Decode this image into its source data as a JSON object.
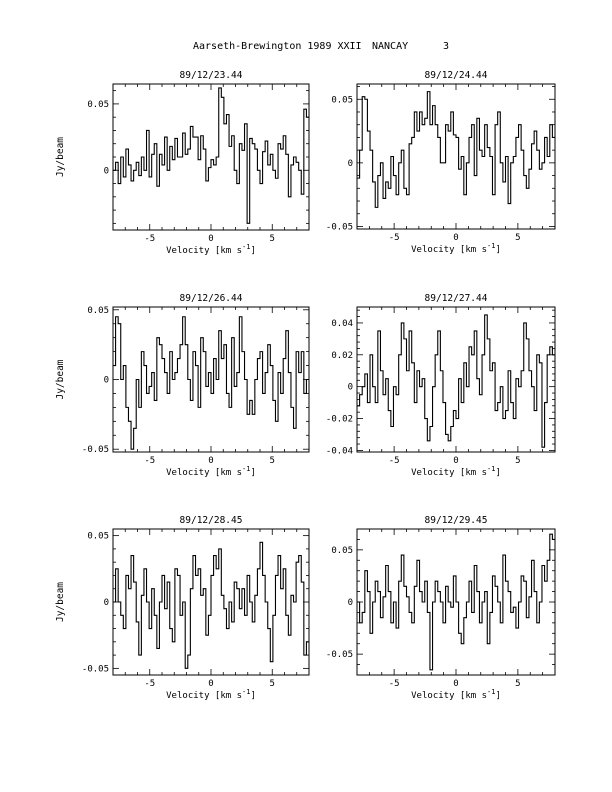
{
  "header": {
    "title": "Aarseth-Brewington 1989 XXII",
    "site": "NANCAY",
    "page": "3"
  },
  "chart_data": [
    {
      "type": "line",
      "title": "89/12/23.44",
      "xlabel": "Velocity [km s",
      "xlabel_sup": "-1",
      "xlabel_end": "]",
      "ylabel": "Jy/beam",
      "xlim": [
        -8,
        8
      ],
      "ylim": [
        -0.045,
        0.065
      ],
      "xticks": [
        -5,
        0,
        5
      ],
      "xtick_labels": [
        "-5",
        "0",
        "5"
      ],
      "yticks": [
        0.05,
        0
      ],
      "ytick_labels": [
        "0.05",
        "0"
      ],
      "series": [
        {
          "values": [
            0.0,
            0.006,
            -0.01,
            0.01,
            -0.005,
            0.016,
            0.004,
            -0.008,
            0.0,
            0.006,
            -0.004,
            0.01,
            0.0,
            0.03,
            -0.005,
            0.012,
            0.02,
            -0.012,
            0.012,
            0.004,
            0.025,
            0.0,
            0.018,
            0.008,
            0.024,
            0.01,
            0.01,
            0.028,
            0.012,
            0.016,
            0.033,
            0.025,
            0.025,
            0.008,
            0.026,
            0.016,
            -0.008,
            0.002,
            0.008,
            0.004,
            0.01,
            0.062,
            0.055,
            0.035,
            0.042,
            0.018,
            0.026,
            0.0,
            -0.01,
            0.02,
            0.015,
            0.035,
            -0.04,
            0.024,
            0.02,
            0.016,
            0.0,
            -0.01,
            0.014,
            0.022,
            0.004,
            0.012,
            0.0,
            -0.006,
            0.02,
            0.016,
            0.026,
            0.012,
            -0.02,
            0.004,
            0.01,
            0.006,
            0.0,
            -0.018,
            0.046,
            0.04
          ]
        }
      ]
    },
    {
      "type": "line",
      "title": "89/12/24.44",
      "xlabel": "Velocity [km s",
      "xlabel_sup": "-1",
      "xlabel_end": "]",
      "ylabel": "",
      "xlim": [
        -8,
        8
      ],
      "ylim": [
        -0.052,
        0.062
      ],
      "xticks": [
        -5,
        0,
        5
      ],
      "xtick_labels": [
        "-5",
        "0",
        "5"
      ],
      "yticks": [
        0.05,
        0,
        -0.05
      ],
      "ytick_labels": [
        "0.05",
        "0",
        "-0.05"
      ],
      "series": [
        {
          "values": [
            -0.012,
            0.01,
            0.052,
            0.05,
            0.025,
            0.01,
            -0.015,
            -0.035,
            -0.01,
            0.0,
            -0.028,
            -0.015,
            -0.02,
            0.005,
            -0.01,
            -0.025,
            0.0,
            0.01,
            -0.02,
            -0.025,
            0.015,
            0.02,
            0.04,
            0.025,
            0.04,
            0.03,
            0.035,
            0.056,
            0.03,
            0.045,
            0.03,
            0.02,
            0.0,
            0.0,
            0.03,
            0.025,
            0.04,
            0.022,
            0.02,
            -0.005,
            0.005,
            -0.025,
            0.0,
            0.02,
            0.03,
            -0.01,
            0.035,
            0.01,
            0.005,
            0.03,
            0.012,
            0.005,
            -0.025,
            0.03,
            0.04,
            0.0,
            -0.015,
            0.005,
            -0.032,
            0.0,
            0.005,
            0.02,
            0.03,
            0.01,
            -0.01,
            -0.02,
            -0.005,
            0.015,
            0.025,
            0.01,
            -0.005,
            0.0,
            0.02,
            0.005,
            0.03,
            0.02
          ]
        }
      ]
    },
    {
      "type": "line",
      "title": "89/12/26.44",
      "xlabel": "Velocity [km s",
      "xlabel_sup": "-1",
      "xlabel_end": "]",
      "ylabel": "Jy/beam",
      "xlim": [
        -8,
        8
      ],
      "ylim": [
        -0.052,
        0.052
      ],
      "xticks": [
        -5,
        0,
        5
      ],
      "xtick_labels": [
        "-5",
        "0",
        "5"
      ],
      "yticks": [
        0.05,
        0,
        -0.05
      ],
      "ytick_labels": [
        "0.05",
        "0",
        "-0.05"
      ],
      "series": [
        {
          "values": [
            0.01,
            0.045,
            0.04,
            0.0,
            0.01,
            -0.02,
            -0.03,
            -0.05,
            -0.035,
            0.0,
            -0.02,
            0.02,
            0.01,
            -0.01,
            -0.005,
            0.005,
            -0.015,
            0.03,
            0.025,
            0.015,
            0.005,
            -0.01,
            0.02,
            0.0,
            0.005,
            0.015,
            0.025,
            0.045,
            0.025,
            0.0,
            -0.015,
            0.02,
            0.01,
            -0.02,
            0.03,
            0.02,
            -0.005,
            0.005,
            -0.01,
            0.015,
            0.0,
            0.035,
            0.015,
            0.025,
            -0.01,
            -0.02,
            0.03,
            -0.005,
            0.005,
            0.045,
            0.02,
            0.0,
            -0.025,
            -0.015,
            -0.025,
            0.0,
            0.015,
            0.02,
            -0.01,
            0.005,
            0.025,
            0.01,
            -0.015,
            -0.03,
            0.005,
            -0.01,
            0.015,
            0.035,
            0.005,
            -0.02,
            -0.035,
            0.02,
            0.005,
            0.02,
            -0.01,
            0.0
          ]
        }
      ]
    },
    {
      "type": "line",
      "title": "89/12/27.44",
      "xlabel": "Velocity [km s",
      "xlabel_sup": "-1",
      "xlabel_end": "]",
      "ylabel": "",
      "xlim": [
        -8,
        8
      ],
      "ylim": [
        -0.041,
        0.05
      ],
      "xticks": [
        -5,
        0,
        5
      ],
      "xtick_labels": [
        "-5",
        "0",
        "5"
      ],
      "yticks": [
        0.04,
        0.02,
        0,
        -0.02,
        -0.04
      ],
      "ytick_labels": [
        "0.04",
        "0.02",
        "0",
        "-0.02",
        "-0.04"
      ],
      "series": [
        {
          "values": [
            -0.012,
            -0.005,
            0.0,
            0.008,
            -0.01,
            0.02,
            0.0,
            -0.01,
            0.035,
            0.01,
            -0.005,
            0.005,
            -0.015,
            -0.025,
            0.0,
            -0.005,
            0.02,
            0.04,
            0.03,
            0.01,
            0.035,
            0.015,
            -0.01,
            0.01,
            0.0,
            0.005,
            -0.02,
            -0.034,
            -0.025,
            0.0,
            0.02,
            0.035,
            0.01,
            -0.01,
            -0.03,
            -0.034,
            -0.025,
            -0.015,
            -0.02,
            0.005,
            -0.01,
            0.015,
            0.0,
            0.025,
            0.02,
            0.035,
            0.005,
            -0.005,
            0.02,
            0.045,
            0.03,
            0.01,
            0.015,
            -0.015,
            -0.01,
            0.0,
            -0.02,
            -0.015,
            0.01,
            -0.01,
            -0.02,
            0.005,
            0.0,
            0.01,
            0.04,
            0.03,
            0.01,
            0.0,
            -0.015,
            0.02,
            0.015,
            -0.038,
            -0.01,
            0.02,
            0.025,
            0.02
          ]
        }
      ]
    },
    {
      "type": "line",
      "title": "89/12/28.45",
      "xlabel": "Velocity [km s",
      "xlabel_sup": "-1",
      "xlabel_end": "]",
      "ylabel": "Jy/beam",
      "xlim": [
        -8,
        8
      ],
      "ylim": [
        -0.055,
        0.055
      ],
      "xticks": [
        -5,
        0,
        5
      ],
      "xtick_labels": [
        "-5",
        "0",
        "5"
      ],
      "yticks": [
        0.05,
        0,
        -0.05
      ],
      "ytick_labels": [
        "0.05",
        "0",
        "-0.05"
      ],
      "series": [
        {
          "values": [
            0.0,
            0.025,
            0.0,
            -0.01,
            -0.02,
            0.02,
            0.01,
            0.035,
            0.015,
            -0.015,
            -0.04,
            0.005,
            0.025,
            0.0,
            -0.02,
            0.01,
            -0.01,
            -0.035,
            0.0,
            0.02,
            -0.005,
            0.015,
            -0.02,
            -0.03,
            0.025,
            0.02,
            -0.01,
            0.0,
            -0.05,
            -0.04,
            0.01,
            0.035,
            0.02,
            0.025,
            0.005,
            0.01,
            -0.025,
            -0.01,
            0.02,
            0.035,
            0.025,
            0.04,
            0.005,
            -0.005,
            -0.02,
            0.0,
            -0.015,
            0.015,
            0.01,
            -0.005,
            0.01,
            -0.01,
            0.02,
            0.0,
            -0.015,
            0.005,
            0.025,
            0.045,
            0.02,
            0.0,
            -0.02,
            -0.045,
            -0.01,
            0.02,
            0.035,
            0.01,
            0.025,
            -0.01,
            -0.025,
            0.005,
            0.0,
            0.03,
            0.035,
            0.015,
            -0.04,
            -0.03
          ]
        }
      ]
    },
    {
      "type": "line",
      "title": "89/12/29.45",
      "xlabel": "Velocity [km s",
      "xlabel_sup": "-1",
      "xlabel_end": "]",
      "ylabel": "",
      "xlim": [
        -8,
        8
      ],
      "ylim": [
        -0.07,
        0.07
      ],
      "xticks": [
        -5,
        0,
        5
      ],
      "xtick_labels": [
        "-5",
        "0",
        "5"
      ],
      "yticks": [
        0.05,
        0,
        -0.05
      ],
      "ytick_labels": [
        "0.05",
        "0",
        "-0.05"
      ],
      "series": [
        {
          "values": [
            0.0,
            -0.02,
            -0.01,
            0.03,
            0.01,
            -0.03,
            0.0,
            0.02,
            0.01,
            -0.015,
            0.005,
            0.035,
            0.01,
            -0.02,
            0.0,
            -0.025,
            0.02,
            0.045,
            0.015,
            0.005,
            -0.01,
            -0.02,
            0.015,
            0.04,
            0.01,
            0.0,
            0.02,
            -0.01,
            -0.065,
            0.0,
            0.02,
            0.01,
            0.0,
            -0.02,
            0.015,
            0.0,
            -0.005,
            0.025,
            0.0,
            -0.03,
            -0.04,
            -0.015,
            0.0,
            0.02,
            -0.01,
            0.035,
            0.01,
            -0.02,
            0.0,
            0.01,
            -0.04,
            -0.01,
            0.025,
            0.015,
            0.0,
            -0.02,
            0.045,
            0.02,
            0.01,
            -0.01,
            -0.005,
            -0.025,
            0.0,
            0.025,
            0.02,
            -0.015,
            0.005,
            0.04,
            0.01,
            -0.02,
            0.0,
            0.035,
            0.02,
            0.04,
            0.065,
            0.06
          ]
        }
      ]
    }
  ]
}
